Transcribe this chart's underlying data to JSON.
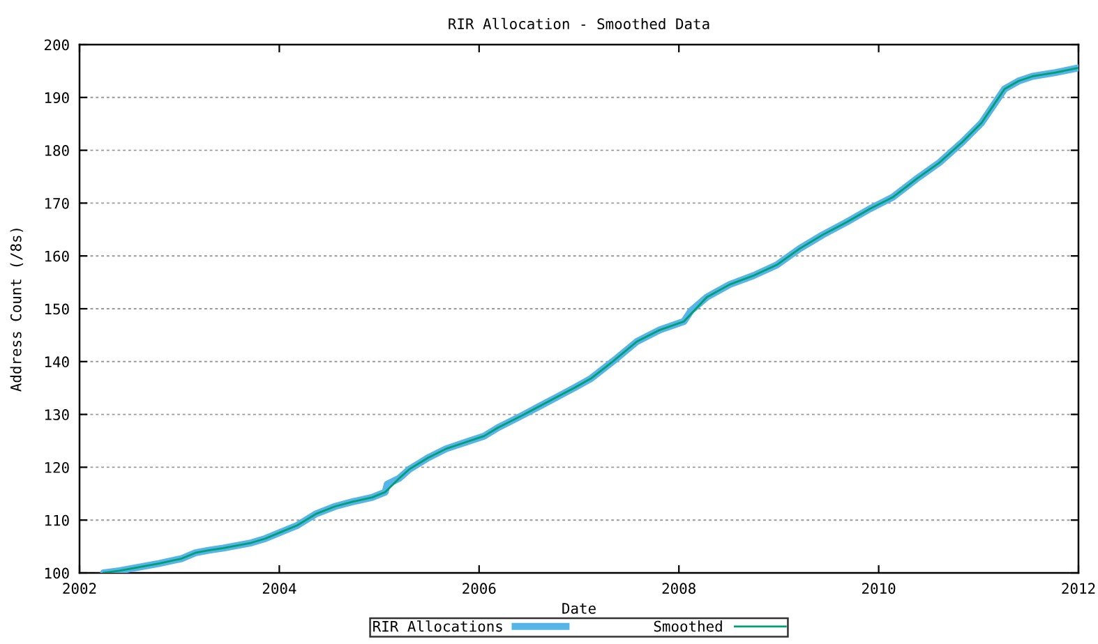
{
  "chart_data": {
    "type": "line",
    "title": "RIR Allocation - Smoothed Data",
    "xlabel": "Date",
    "ylabel": "Address Count (/8s)",
    "xlim": [
      2002,
      2012
    ],
    "xticks": [
      2002,
      2004,
      2006,
      2008,
      2010,
      2012
    ],
    "ylim": [
      100,
      200
    ],
    "yticks": [
      100,
      110,
      120,
      130,
      140,
      150,
      160,
      170,
      180,
      190,
      200
    ],
    "grid": "y",
    "legend": "bottom",
    "line_style": "solid",
    "series": [
      {
        "name": "RIR Allocations",
        "color": "#56b4e9",
        "x": [
          2002.24,
          2002.4,
          2002.6,
          2002.8,
          2003.02,
          2003.16,
          2003.3,
          2003.44,
          2003.72,
          2003.86,
          2004.0,
          2004.18,
          2004.37,
          2004.56,
          2004.74,
          2004.93,
          2005.06,
          2005.08,
          2005.2,
          2005.3,
          2005.49,
          2005.67,
          2005.86,
          2006.05,
          2006.19,
          2006.42,
          2006.6,
          2006.79,
          2006.95,
          2007.12,
          2007.35,
          2007.58,
          2007.81,
          2008.05,
          2008.12,
          2008.28,
          2008.51,
          2008.75,
          2008.98,
          2009.21,
          2009.44,
          2009.68,
          2009.91,
          2010.14,
          2010.38,
          2010.61,
          2010.84,
          2011.03,
          2011.17,
          2011.26,
          2011.4,
          2011.54,
          2011.77,
          2012.0
        ],
        "values": [
          100.0,
          100.4,
          101.1,
          101.8,
          102.7,
          103.8,
          104.3,
          104.7,
          105.7,
          106.5,
          107.6,
          109.0,
          111.2,
          112.6,
          113.5,
          114.3,
          115.3,
          116.8,
          117.9,
          119.6,
          121.8,
          123.5,
          124.7,
          125.9,
          127.5,
          129.7,
          131.5,
          133.4,
          135.0,
          136.8,
          140.2,
          143.8,
          146.0,
          147.6,
          149.6,
          152.2,
          154.6,
          156.3,
          158.3,
          161.4,
          164.0,
          166.4,
          168.9,
          171.1,
          174.6,
          177.7,
          181.6,
          185.2,
          189.1,
          191.6,
          193.1,
          194.0,
          194.7,
          195.6
        ]
      },
      {
        "name": "Smoothed",
        "color": "#009e73",
        "x": [
          2002.24,
          2002.4,
          2002.6,
          2002.8,
          2003.02,
          2003.16,
          2003.3,
          2003.44,
          2003.72,
          2003.86,
          2004.0,
          2004.18,
          2004.37,
          2004.56,
          2004.74,
          2004.93,
          2005.06,
          2005.2,
          2005.3,
          2005.49,
          2005.67,
          2005.86,
          2006.05,
          2006.19,
          2006.42,
          2006.6,
          2006.79,
          2006.95,
          2007.12,
          2007.35,
          2007.58,
          2007.81,
          2008.05,
          2008.28,
          2008.51,
          2008.75,
          2008.98,
          2009.21,
          2009.44,
          2009.68,
          2009.91,
          2010.14,
          2010.38,
          2010.61,
          2010.84,
          2011.03,
          2011.17,
          2011.26,
          2011.4,
          2011.54,
          2011.77,
          2012.0
        ],
        "values": [
          100.0,
          100.4,
          101.1,
          101.8,
          102.7,
          103.8,
          104.3,
          104.7,
          105.7,
          106.5,
          107.6,
          109.0,
          111.2,
          112.6,
          113.5,
          114.3,
          115.3,
          117.9,
          119.6,
          121.8,
          123.5,
          124.7,
          125.9,
          127.5,
          129.7,
          131.5,
          133.4,
          135.0,
          136.8,
          140.2,
          143.8,
          146.0,
          147.6,
          152.2,
          154.6,
          156.3,
          158.3,
          161.4,
          164.0,
          166.4,
          168.9,
          171.1,
          174.6,
          177.7,
          181.6,
          185.2,
          189.1,
          191.6,
          193.1,
          194.0,
          194.7,
          195.6
        ]
      }
    ]
  }
}
